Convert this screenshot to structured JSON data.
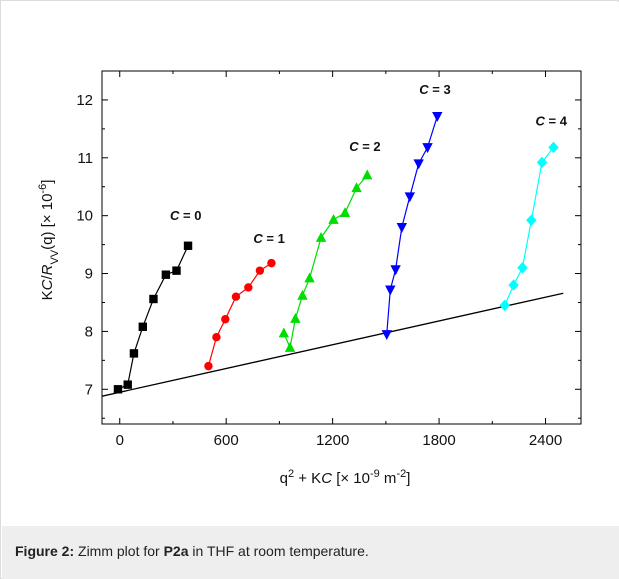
{
  "caption": {
    "label": "Figure 2:",
    "text_before": "Zimm plot for ",
    "compound": "P2a",
    "text_after": " in THF at room temperature."
  },
  "chart_data": {
    "type": "scatter",
    "title": "",
    "xlabel": {
      "base": "q",
      "sup1": "2",
      "mid": " + K",
      "italic": "C",
      "unit_open": " [× 10",
      "unit_exp": "-9",
      "unit_mid": " m",
      "unit_exp2": "-2",
      "unit_close": "]"
    },
    "ylabel": {
      "k": "K",
      "c": "C",
      "slash": "/",
      "r": "R",
      "sub": "VV",
      "q": "(q) [× 10",
      "exp": "-6",
      "close": "]"
    },
    "xlim": [
      -100,
      2600
    ],
    "ylim": [
      6.4,
      12.5
    ],
    "x_ticks": [
      0,
      600,
      1200,
      1800,
      2400
    ],
    "x_tick_labels": [
      "0",
      "600",
      "1200",
      "1800",
      "2400"
    ],
    "y_ticks": [
      7,
      8,
      9,
      10,
      11,
      12
    ],
    "y_tick_labels": [
      "7",
      "8",
      "9",
      "10",
      "11",
      "12"
    ],
    "grid": false,
    "series": [
      {
        "name": "C = 0",
        "label_prefix": "C",
        "label_suffix": " = 0",
        "color": "#000000",
        "marker": "square",
        "x": [
          -10,
          45,
          80,
          130,
          190,
          260,
          320,
          385
        ],
        "y": [
          7.0,
          7.08,
          7.62,
          8.08,
          8.56,
          8.98,
          9.05,
          9.48
        ]
      },
      {
        "name": "C = 1",
        "label_prefix": "C",
        "label_suffix": " = 1",
        "color": "#ff0000",
        "marker": "circle",
        "x": [
          500,
          545,
          595,
          655,
          725,
          790,
          855
        ],
        "y": [
          7.4,
          7.9,
          8.21,
          8.6,
          8.76,
          9.05,
          9.18
        ]
      },
      {
        "name": "C = 2",
        "label_prefix": "C",
        "label_suffix": " = 2",
        "color": "#00dd00",
        "marker": "triangle-up",
        "x": [
          925,
          960,
          990,
          1030,
          1070,
          1135,
          1205,
          1270,
          1335,
          1395
        ],
        "y": [
          7.97,
          7.72,
          8.22,
          8.62,
          8.92,
          9.62,
          9.93,
          10.05,
          10.48,
          10.7
        ]
      },
      {
        "name": "C = 3",
        "label_prefix": "C",
        "label_suffix": " = 3",
        "color": "#0000ff",
        "marker": "triangle-down",
        "x": [
          1505,
          1525,
          1555,
          1590,
          1635,
          1685,
          1735,
          1790
        ],
        "y": [
          7.95,
          8.72,
          9.07,
          9.8,
          10.33,
          10.9,
          11.18,
          11.72
        ]
      },
      {
        "name": "C = 4",
        "label_prefix": "C",
        "label_suffix": " = 4",
        "color": "#00ffff",
        "marker": "diamond",
        "x": [
          2170,
          2220,
          2270,
          2320,
          2380,
          2445
        ],
        "y": [
          8.45,
          8.8,
          9.1,
          9.92,
          10.92,
          11.18
        ]
      }
    ],
    "baseline": {
      "color": "#000000",
      "x": [
        -100,
        2500
      ],
      "y": [
        6.88,
        8.66
      ]
    }
  }
}
